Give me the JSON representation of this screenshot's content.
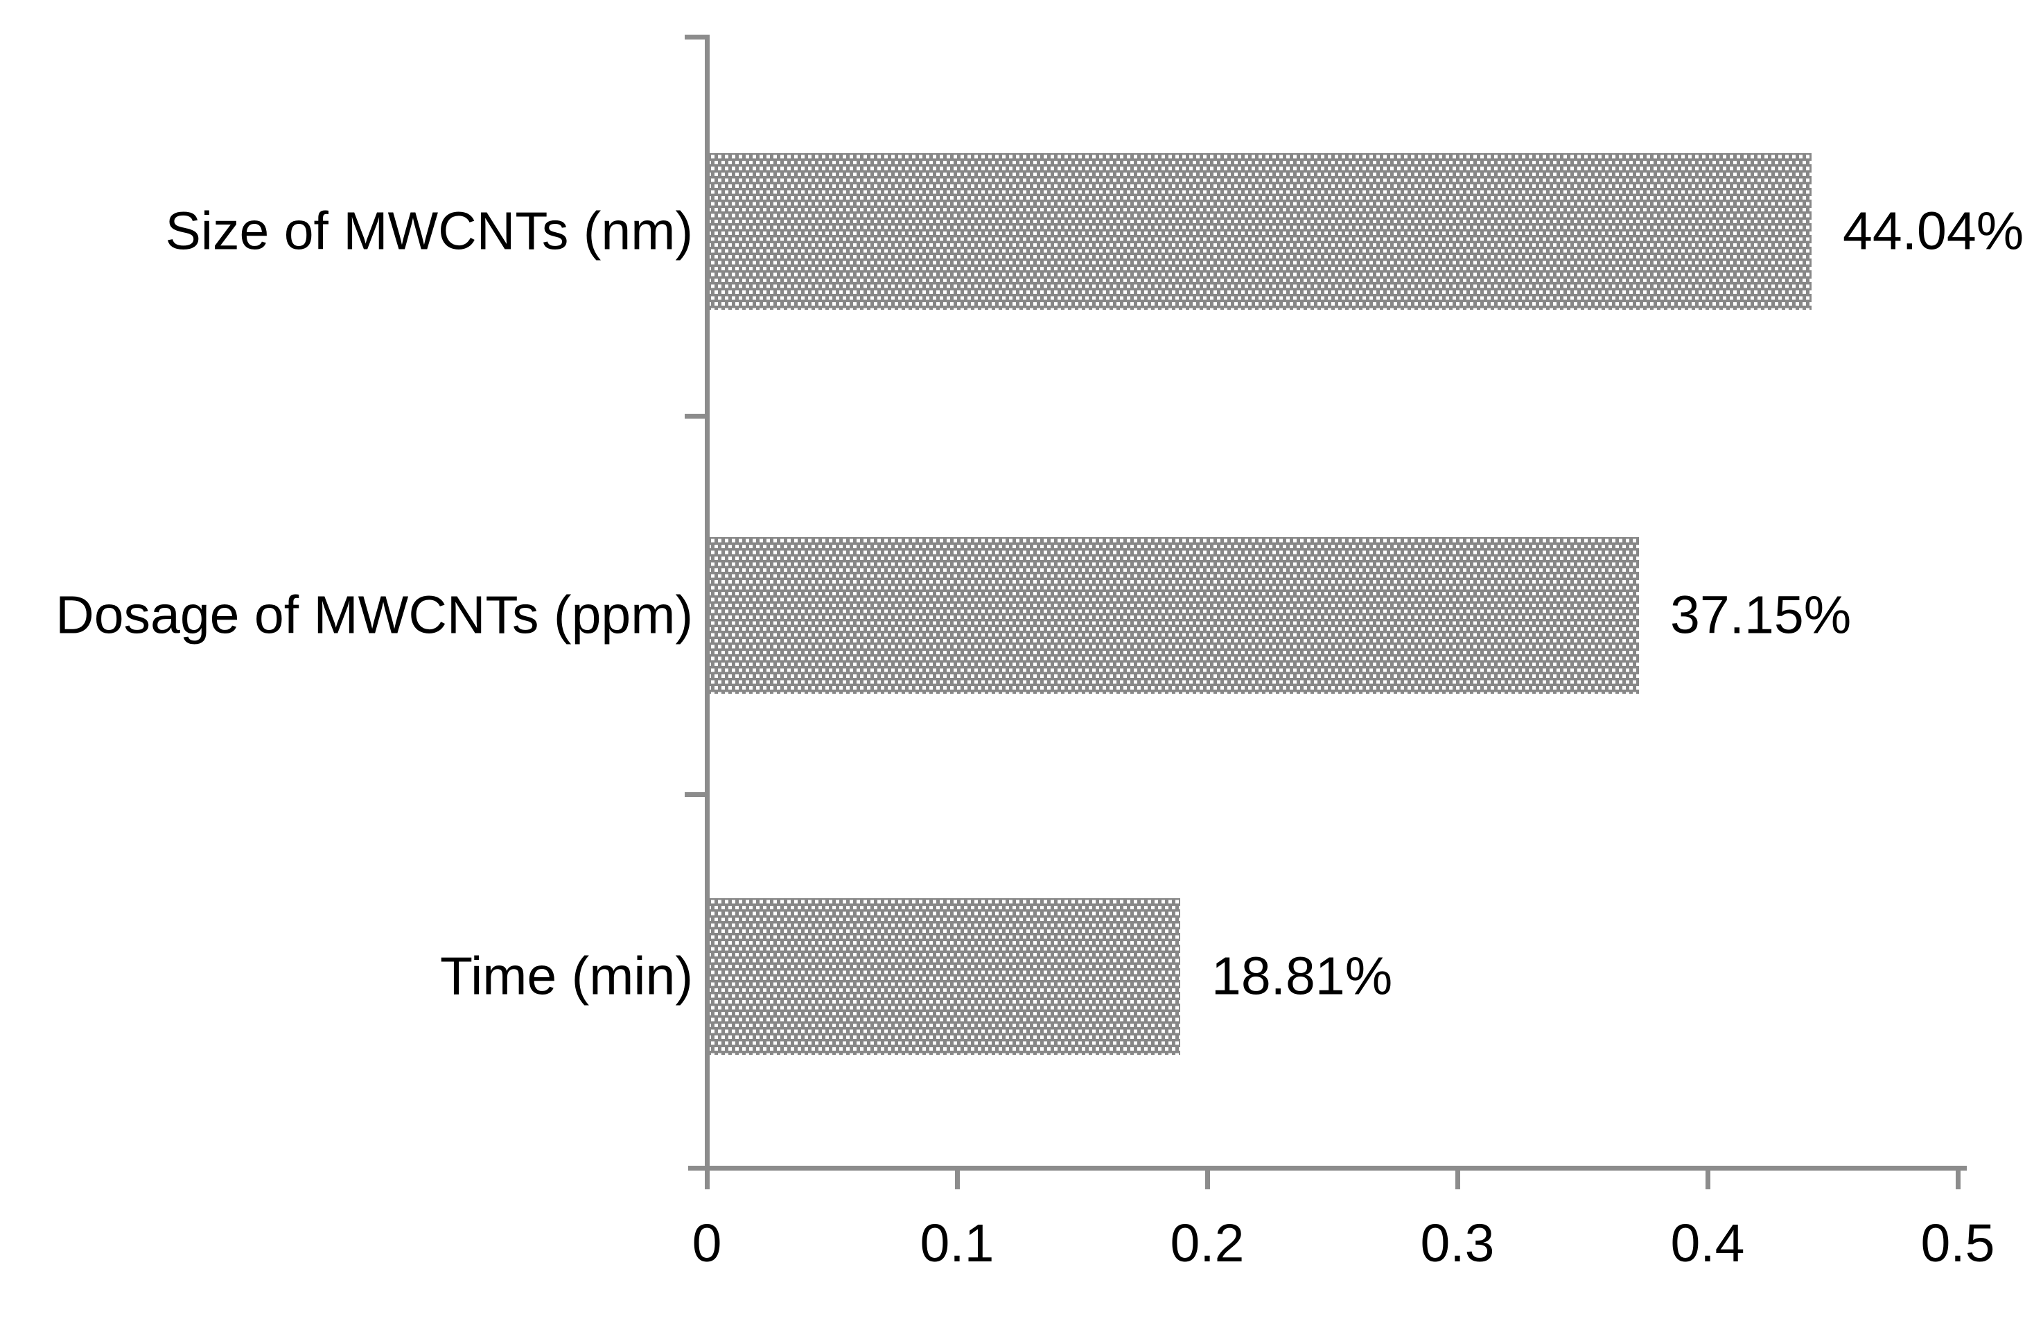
{
  "chart_data": {
    "type": "bar",
    "orientation": "horizontal",
    "title": "",
    "xlabel": "",
    "ylabel": "",
    "categories": [
      "Size of MWCNTs (nm)",
      "Dosage of MWCNTs (ppm)",
      "Time (min)"
    ],
    "values": [
      0.4404,
      0.3715,
      0.1881
    ],
    "value_labels": [
      "44.04%",
      "37.15%",
      "18.81%"
    ],
    "x_ticks": [
      "0",
      "0.1",
      "0.2",
      "0.3",
      "0.4",
      "0.5"
    ],
    "xlim": [
      0,
      0.5
    ],
    "grid": false,
    "legend": false,
    "bar_pattern": "white square dots on gray (staggered grid)",
    "bar_color": "#878787",
    "dot_color": "#ffffff",
    "axis_color": "#8c8c8c",
    "text_color": "#000000"
  }
}
